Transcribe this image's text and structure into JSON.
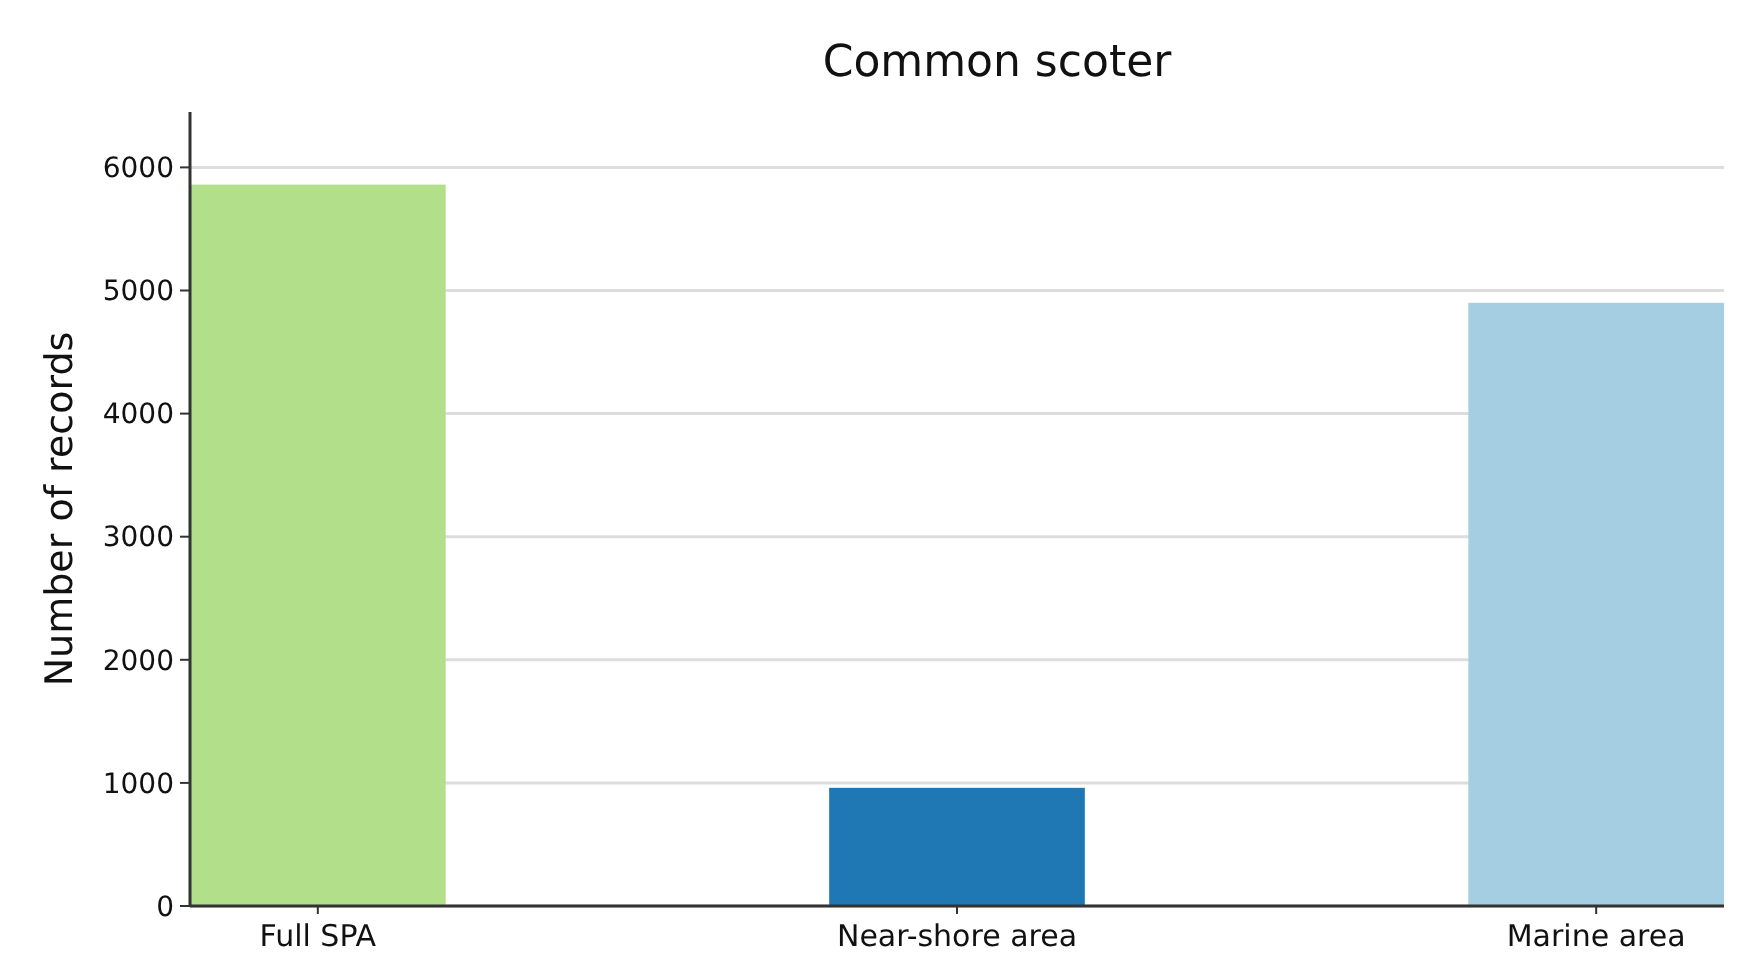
{
  "chart_data": {
    "type": "bar",
    "title": "Common scoter",
    "ylabel": "Number of records",
    "categories": [
      "Full SPA",
      "Near-shore area",
      "Marine area"
    ],
    "values": [
      5860,
      960,
      4900
    ],
    "colors": [
      "#b2df8a",
      "#1f78b4",
      "#a6cee3"
    ],
    "ylim": [
      0,
      6450
    ],
    "yticks": [
      0,
      1000,
      2000,
      3000,
      4000,
      5000,
      6000
    ],
    "grid": "y"
  }
}
